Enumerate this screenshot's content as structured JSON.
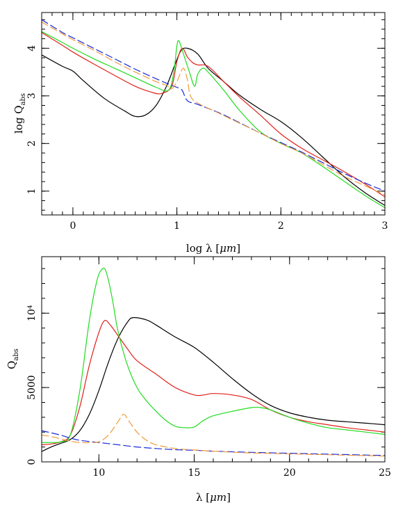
{
  "colors": {
    "black": "#000000",
    "red": "#e0201a",
    "green": "#1edc1e",
    "blue": "#1a2ad8",
    "orange": "#f09a3e"
  },
  "chart_data": [
    {
      "type": "line",
      "xlabel": {
        "pre": "log λ [",
        "unit": "μm",
        "post": "]"
      },
      "ylabel": {
        "main": "log Q",
        "sub": "abs"
      },
      "xlim": [
        -0.3,
        3.0
      ],
      "ylim": [
        0.5,
        4.75
      ],
      "xticks": [
        {
          "v": 0,
          "label": "0"
        },
        {
          "v": 1,
          "label": "1"
        },
        {
          "v": 2,
          "label": "2"
        },
        {
          "v": 3,
          "label": "3"
        }
      ],
      "yticks": [
        {
          "v": 1,
          "label": "1"
        },
        {
          "v": 2,
          "label": "2"
        },
        {
          "v": 3,
          "label": "3"
        },
        {
          "v": 4,
          "label": "4"
        }
      ],
      "minor_x": 0.1,
      "minor_y": 0.2,
      "series": [
        {
          "color": "black",
          "dash": "",
          "points": [
            [
              -0.3,
              3.86
            ],
            [
              -0.1,
              3.62
            ],
            [
              0.0,
              3.52
            ],
            [
              0.1,
              3.32
            ],
            [
              0.3,
              2.95
            ],
            [
              0.5,
              2.68
            ],
            [
              0.6,
              2.57
            ],
            [
              0.7,
              2.6
            ],
            [
              0.8,
              2.8
            ],
            [
              0.9,
              3.2
            ],
            [
              0.98,
              3.65
            ],
            [
              1.04,
              3.95
            ],
            [
              1.1,
              4.0
            ],
            [
              1.2,
              3.88
            ],
            [
              1.3,
              3.58
            ],
            [
              1.45,
              3.3
            ],
            [
              1.6,
              3.02
            ],
            [
              1.8,
              2.72
            ],
            [
              2.0,
              2.46
            ],
            [
              2.2,
              2.12
            ],
            [
              2.4,
              1.72
            ],
            [
              2.6,
              1.32
            ],
            [
              2.8,
              0.98
            ],
            [
              3.0,
              0.7
            ]
          ]
        },
        {
          "color": "red",
          "dash": "",
          "points": [
            [
              -0.3,
              4.33
            ],
            [
              -0.1,
              4.06
            ],
            [
              0.0,
              3.92
            ],
            [
              0.2,
              3.67
            ],
            [
              0.4,
              3.43
            ],
            [
              0.6,
              3.2
            ],
            [
              0.75,
              3.08
            ],
            [
              0.85,
              3.05
            ],
            [
              0.95,
              3.2
            ],
            [
              1.0,
              3.72
            ],
            [
              1.05,
              4.0
            ],
            [
              1.1,
              3.82
            ],
            [
              1.15,
              3.7
            ],
            [
              1.2,
              3.65
            ],
            [
              1.3,
              3.62
            ],
            [
              1.45,
              3.3
            ],
            [
              1.6,
              2.98
            ],
            [
              1.8,
              2.6
            ],
            [
              2.0,
              2.2
            ],
            [
              2.2,
              1.9
            ],
            [
              2.4,
              1.66
            ],
            [
              2.6,
              1.42
            ],
            [
              2.8,
              1.16
            ],
            [
              3.0,
              0.88
            ]
          ]
        },
        {
          "color": "green",
          "dash": "",
          "points": [
            [
              -0.3,
              4.35
            ],
            [
              -0.1,
              4.12
            ],
            [
              0.0,
              4.0
            ],
            [
              0.2,
              3.78
            ],
            [
              0.4,
              3.58
            ],
            [
              0.6,
              3.38
            ],
            [
              0.8,
              3.18
            ],
            [
              0.92,
              3.12
            ],
            [
              0.97,
              3.5
            ],
            [
              1.0,
              4.05
            ],
            [
              1.02,
              4.15
            ],
            [
              1.06,
              3.9
            ],
            [
              1.12,
              3.5
            ],
            [
              1.17,
              3.2
            ],
            [
              1.2,
              3.45
            ],
            [
              1.25,
              3.58
            ],
            [
              1.3,
              3.5
            ],
            [
              1.45,
              3.12
            ],
            [
              1.6,
              2.7
            ],
            [
              1.8,
              2.25
            ],
            [
              2.0,
              2.0
            ],
            [
              2.2,
              1.8
            ],
            [
              2.4,
              1.52
            ],
            [
              2.6,
              1.22
            ],
            [
              2.8,
              0.92
            ],
            [
              3.0,
              0.65
            ]
          ]
        },
        {
          "color": "blue",
          "dash": "10,5",
          "points": [
            [
              -0.3,
              4.6
            ],
            [
              -0.1,
              4.33
            ],
            [
              0.0,
              4.22
            ],
            [
              0.2,
              4.0
            ],
            [
              0.4,
              3.78
            ],
            [
              0.6,
              3.56
            ],
            [
              0.8,
              3.36
            ],
            [
              0.95,
              3.22
            ],
            [
              1.0,
              3.18
            ],
            [
              1.05,
              3.12
            ],
            [
              1.1,
              2.9
            ],
            [
              1.2,
              2.82
            ],
            [
              1.4,
              2.65
            ],
            [
              1.6,
              2.44
            ],
            [
              1.8,
              2.22
            ],
            [
              2.0,
              2.02
            ],
            [
              2.2,
              1.82
            ],
            [
              2.4,
              1.6
            ],
            [
              2.6,
              1.38
            ],
            [
              2.8,
              1.18
            ],
            [
              3.0,
              1.0
            ]
          ]
        },
        {
          "color": "orange",
          "dash": "10,5",
          "points": [
            [
              -0.3,
              4.55
            ],
            [
              -0.1,
              4.3
            ],
            [
              0.0,
              4.18
            ],
            [
              0.2,
              3.96
            ],
            [
              0.4,
              3.72
            ],
            [
              0.6,
              3.5
            ],
            [
              0.8,
              3.3
            ],
            [
              0.9,
              3.22
            ],
            [
              0.95,
              3.15
            ],
            [
              1.0,
              3.3
            ],
            [
              1.06,
              3.58
            ],
            [
              1.1,
              3.35
            ],
            [
              1.13,
              3.0
            ],
            [
              1.2,
              2.85
            ],
            [
              1.4,
              2.64
            ],
            [
              1.6,
              2.43
            ],
            [
              1.8,
              2.22
            ],
            [
              2.0,
              2.0
            ],
            [
              2.2,
              1.8
            ],
            [
              2.4,
              1.56
            ],
            [
              2.6,
              1.32
            ],
            [
              2.8,
              1.12
            ],
            [
              3.0,
              0.92
            ]
          ]
        }
      ]
    },
    {
      "type": "line",
      "xlabel": {
        "pre": "λ [",
        "unit": "μm",
        "post": "]"
      },
      "ylabel": {
        "main": "Q",
        "sub": "abs"
      },
      "xlim": [
        7,
        25
      ],
      "ylim": [
        0,
        13800
      ],
      "xticks": [
        {
          "v": 10,
          "label": "10"
        },
        {
          "v": 15,
          "label": "15"
        },
        {
          "v": 20,
          "label": "20"
        },
        {
          "v": 25,
          "label": "25"
        }
      ],
      "yticks": [
        {
          "v": 0,
          "label": "0"
        },
        {
          "v": 5000,
          "label": "5000"
        },
        {
          "v": 10000,
          "label": "10⁴"
        }
      ],
      "minor_x": 1,
      "minor_y": 1000,
      "series": [
        {
          "color": "black",
          "dash": "",
          "points": [
            [
              7,
              700
            ],
            [
              7.5,
              1000
            ],
            [
              8,
              1250
            ],
            [
              8.5,
              1500
            ],
            [
              9,
              2100
            ],
            [
              9.5,
              3200
            ],
            [
              10,
              4800
            ],
            [
              10.5,
              6700
            ],
            [
              11,
              8300
            ],
            [
              11.5,
              9400
            ],
            [
              11.8,
              9700
            ],
            [
              12.5,
              9550
            ],
            [
              13,
              9200
            ],
            [
              14,
              8400
            ],
            [
              15,
              7700
            ],
            [
              16,
              6700
            ],
            [
              17,
              5600
            ],
            [
              18,
              4600
            ],
            [
              19,
              3800
            ],
            [
              20,
              3300
            ],
            [
              21,
              3000
            ],
            [
              22,
              2800
            ],
            [
              23,
              2700
            ],
            [
              24,
              2600
            ],
            [
              25,
              2500
            ]
          ]
        },
        {
          "color": "red",
          "dash": "",
          "points": [
            [
              7,
              1150
            ],
            [
              7.5,
              1200
            ],
            [
              8,
              1350
            ],
            [
              8.5,
              1800
            ],
            [
              9,
              3700
            ],
            [
              9.5,
              6500
            ],
            [
              10,
              8700
            ],
            [
              10.3,
              9500
            ],
            [
              10.6,
              9200
            ],
            [
              11,
              8500
            ],
            [
              11.5,
              7600
            ],
            [
              12,
              6800
            ],
            [
              13,
              5900
            ],
            [
              14,
              5000
            ],
            [
              15,
              4500
            ],
            [
              15.5,
              4500
            ],
            [
              16,
              4600
            ],
            [
              17,
              4500
            ],
            [
              18,
              4200
            ],
            [
              19,
              3500
            ],
            [
              20,
              3000
            ],
            [
              21,
              2700
            ],
            [
              22,
              2500
            ],
            [
              23,
              2300
            ],
            [
              24,
              2150
            ],
            [
              25,
              2000
            ]
          ]
        },
        {
          "color": "green",
          "dash": "",
          "points": [
            [
              7,
              1300
            ],
            [
              7.5,
              1300
            ],
            [
              8,
              1350
            ],
            [
              8.5,
              1800
            ],
            [
              9,
              4800
            ],
            [
              9.5,
              9500
            ],
            [
              9.9,
              12200
            ],
            [
              10.2,
              13000
            ],
            [
              10.4,
              12700
            ],
            [
              10.7,
              11000
            ],
            [
              11,
              8800
            ],
            [
              11.5,
              6500
            ],
            [
              12,
              5000
            ],
            [
              12.5,
              4100
            ],
            [
              13,
              3400
            ],
            [
              13.5,
              2800
            ],
            [
              14,
              2400
            ],
            [
              14.5,
              2300
            ],
            [
              15,
              2350
            ],
            [
              15.5,
              2800
            ],
            [
              16,
              3100
            ],
            [
              17,
              3400
            ],
            [
              18,
              3650
            ],
            [
              18.5,
              3650
            ],
            [
              19,
              3500
            ],
            [
              20,
              3000
            ],
            [
              21,
              2600
            ],
            [
              22,
              2300
            ],
            [
              23,
              2150
            ],
            [
              24,
              2000
            ],
            [
              25,
              1850
            ]
          ]
        },
        {
          "color": "blue",
          "dash": "10,5",
          "points": [
            [
              7,
              2100
            ],
            [
              7.5,
              1950
            ],
            [
              8,
              1800
            ],
            [
              8.5,
              1600
            ],
            [
              9,
              1450
            ],
            [
              10,
              1300
            ],
            [
              11,
              1150
            ],
            [
              12,
              1000
            ],
            [
              13,
              900
            ],
            [
              14,
              820
            ],
            [
              15,
              780
            ],
            [
              16,
              720
            ],
            [
              17,
              680
            ],
            [
              18,
              640
            ],
            [
              19,
              610
            ],
            [
              20,
              580
            ],
            [
              21,
              550
            ],
            [
              22,
              520
            ],
            [
              23,
              490
            ],
            [
              24,
              460
            ],
            [
              25,
              430
            ]
          ]
        },
        {
          "color": "orange",
          "dash": "10,5",
          "points": [
            [
              7,
              1800
            ],
            [
              7.5,
              1700
            ],
            [
              8,
              1550
            ],
            [
              8.5,
              1400
            ],
            [
              9,
              1300
            ],
            [
              9.5,
              1300
            ],
            [
              10,
              1350
            ],
            [
              10.5,
              1800
            ],
            [
              11,
              2700
            ],
            [
              11.3,
              3200
            ],
            [
              11.6,
              2700
            ],
            [
              12,
              2000
            ],
            [
              12.5,
              1450
            ],
            [
              13,
              1150
            ],
            [
              14,
              900
            ],
            [
              15,
              800
            ],
            [
              16,
              720
            ],
            [
              17,
              650
            ],
            [
              18,
              600
            ],
            [
              19,
              570
            ],
            [
              20,
              540
            ],
            [
              21,
              510
            ],
            [
              22,
              480
            ],
            [
              23,
              450
            ],
            [
              24,
              420
            ],
            [
              25,
              390
            ]
          ]
        }
      ]
    }
  ]
}
